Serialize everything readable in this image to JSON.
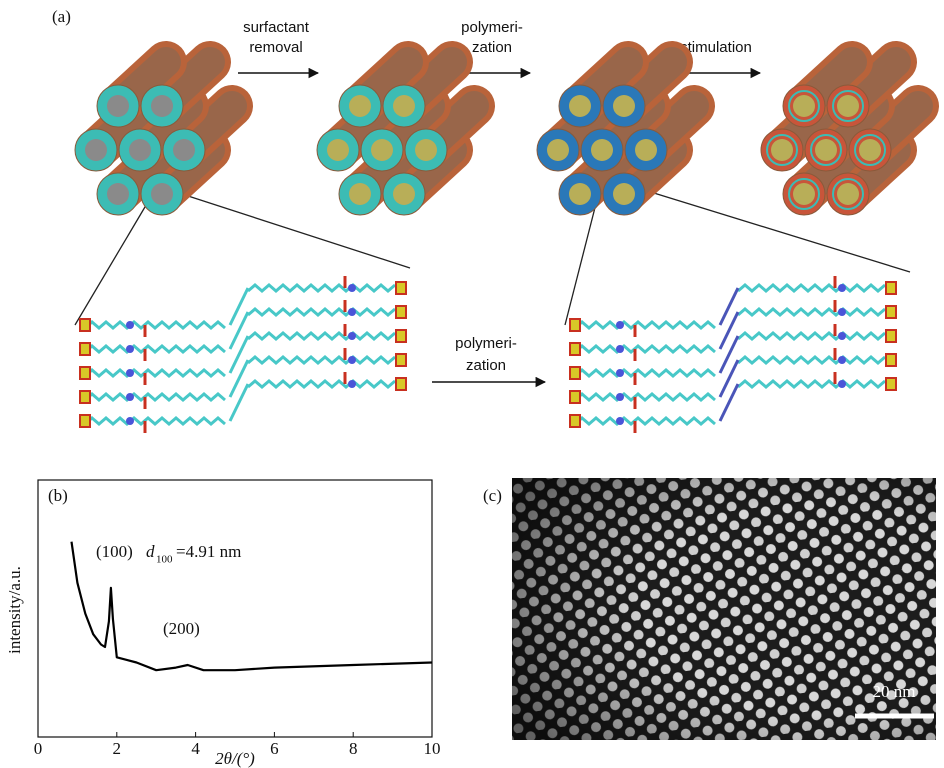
{
  "panel_a": {
    "label": "(a)",
    "step1": [
      "surfactant",
      "removal"
    ],
    "step2": [
      "polymeri-",
      "zation"
    ],
    "step3": "stimulation",
    "zoom_step": [
      "polymeri-",
      "zation"
    ]
  },
  "chart_data": {
    "type": "line",
    "panel_label": "(b)",
    "x_label": "2θ/(°)",
    "y_label": "intensity/a.u.",
    "annotations": {
      "peak_100": "(100)",
      "d_symbol": "d",
      "d_subscript": "100",
      "d_value": "=4.91 nm",
      "peak_200": "(200)"
    },
    "x": [
      0.85,
      1.0,
      1.2,
      1.4,
      1.6,
      1.7,
      1.8,
      1.85,
      1.9,
      2.0,
      2.5,
      3.0,
      3.5,
      3.8,
      4.2,
      5,
      6,
      8,
      10
    ],
    "values": [
      76,
      60,
      48,
      40,
      36,
      35,
      45,
      58,
      46,
      31,
      29,
      26,
      27,
      28,
      26,
      26,
      27,
      28,
      29
    ],
    "color": "#000000",
    "xlim": [
      0,
      10
    ],
    "xticks": [
      0,
      2,
      4,
      6,
      8,
      10
    ],
    "ylim": [
      0,
      100
    ]
  },
  "panel_c": {
    "label": "(c)",
    "scale_bar": "20 nm"
  }
}
